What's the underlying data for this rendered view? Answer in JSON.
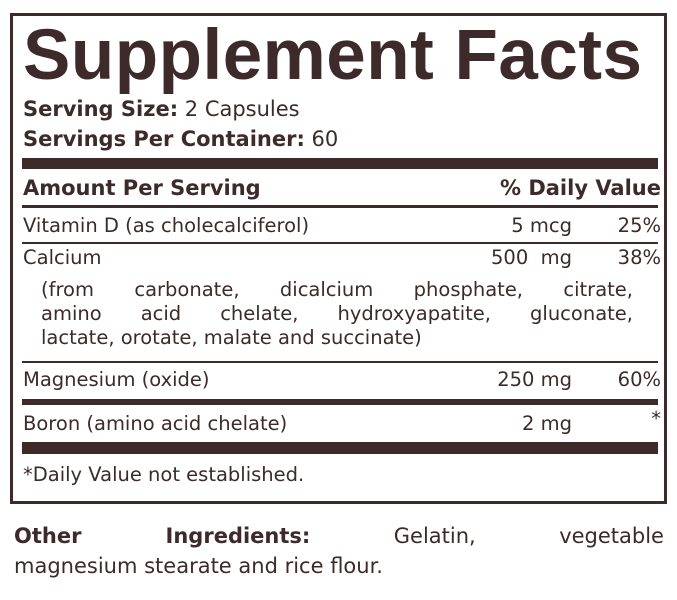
{
  "title": "Supplement Facts",
  "serving_size": {
    "label": "Serving Size:",
    "value": "2 Capsules"
  },
  "servings_per_container": {
    "label": "Servings Per Container:",
    "value": "60"
  },
  "header": {
    "amount": "Amount Per Serving",
    "dv": "% Daily Value"
  },
  "rows": [
    {
      "name": "Vitamin D (as cholecalciferol)",
      "amount": "5 mcg",
      "dv": "25%"
    },
    {
      "name": "Calcium",
      "amount": "500  mg",
      "dv": "38%",
      "detail": [
        "(from carbonate, dicalcium phosphate, citrate,",
        "amino acid chelate, hydroxyapatite, gluconate,",
        "lactate, orotate, malate and succinate)"
      ]
    },
    {
      "name": "Magnesium (oxide)",
      "amount": "250 mg",
      "dv": "60%"
    },
    {
      "name": "Boron (amino acid chelate)",
      "amount": "2 mg",
      "dv": "*"
    }
  ],
  "footnote": "*Daily Value not established.",
  "other_ingredients": {
    "label": "Other Ingredients:",
    "lines": [
      "Gelatin, vegetable",
      "magnesium stearate and rice flour."
    ]
  },
  "colors": {
    "text": "#3d2a2a"
  }
}
